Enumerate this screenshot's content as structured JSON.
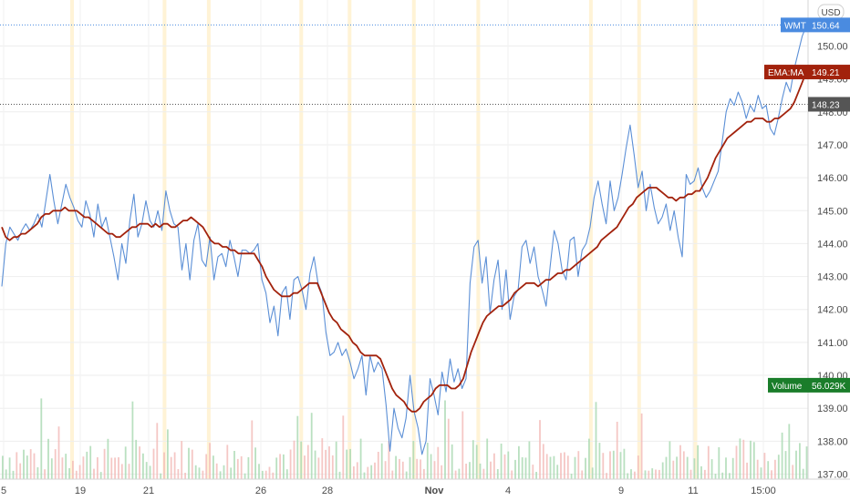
{
  "chart_data": {
    "type": "line",
    "currency_label": "USD",
    "x_axis_labels": [
      "5",
      "19",
      "21",
      "26",
      "28",
      "Nov",
      "4",
      "9",
      "11",
      "15:00"
    ],
    "y_ticks": [
      137,
      138,
      139,
      140,
      141,
      142,
      143,
      144,
      145,
      146,
      147,
      148,
      149,
      150
    ],
    "ylim": [
      136.8,
      150.9
    ],
    "grid": true,
    "series": [
      {
        "name": "WMT",
        "color": "#5b8fd6",
        "last_value": "150.64",
        "values": [
          142.7,
          144.0,
          144.5,
          144.3,
          144.1,
          144.4,
          144.6,
          144.4,
          144.6,
          144.9,
          144.5,
          145.3,
          146.1,
          145.3,
          144.6,
          145.2,
          145.8,
          145.4,
          145.1,
          144.7,
          144.5,
          145.3,
          144.9,
          144.2,
          145.2,
          144.5,
          144.8,
          144.2,
          143.6,
          142.9,
          144.0,
          143.4,
          144.7,
          145.5,
          144.2,
          144.6,
          145.3,
          144.7,
          144.5,
          145.0,
          144.4,
          145.6,
          145.0,
          144.6,
          144.5,
          143.2,
          144.0,
          142.9,
          144.1,
          144.6,
          143.5,
          143.3,
          144.2,
          142.9,
          143.6,
          143.7,
          143.3,
          144.1,
          143.6,
          143.0,
          143.8,
          143.8,
          143.7,
          143.8,
          144.0,
          142.9,
          142.5,
          141.6,
          142.1,
          141.2,
          142.5,
          142.7,
          141.7,
          142.9,
          143.0,
          142.6,
          142.0,
          143.1,
          143.6,
          142.8,
          142.5,
          141.3,
          140.6,
          140.7,
          141.0,
          140.6,
          140.8,
          140.4,
          139.9,
          140.2,
          140.6,
          139.4,
          140.6,
          140.1,
          140.4,
          140.2,
          139.1,
          137.7,
          139.0,
          138.4,
          138.1,
          138.7,
          140.0,
          138.9,
          138.4,
          137.6,
          138.0,
          139.9,
          139.4,
          138.8,
          140.1,
          139.5,
          140.5,
          139.8,
          140.2,
          139.6,
          139.9,
          142.8,
          143.9,
          144.1,
          142.8,
          143.6,
          141.9,
          142.9,
          143.5,
          142.0,
          143.2,
          141.7,
          142.4,
          142.6,
          143.9,
          144.1,
          143.4,
          143.9,
          143.0,
          142.6,
          142.1,
          143.3,
          144.4,
          144.0,
          143.2,
          142.9,
          144.1,
          144.2,
          143.0,
          143.8,
          144.0,
          144.5,
          145.4,
          145.9,
          145.2,
          144.6,
          145.9,
          145.0,
          145.4,
          146.1,
          146.9,
          147.6,
          146.7,
          145.7,
          146.2,
          145.0,
          145.8,
          145.1,
          144.6,
          144.8,
          145.2,
          144.4,
          145.0,
          144.2,
          143.6,
          146.1,
          145.8,
          145.9,
          146.3,
          145.7,
          145.4,
          145.6,
          145.9,
          146.2,
          147.1,
          148.0,
          148.4,
          148.2,
          148.6,
          148.3,
          147.8,
          148.2,
          148.0,
          148.5,
          148.1,
          148.2,
          147.5,
          147.3,
          147.8,
          148.4,
          148.9,
          148.6,
          149.3,
          149.8,
          150.3,
          150.6
        ]
      },
      {
        "name": "EMA:MA",
        "color": "#a2220c",
        "last_value": "149.21",
        "values": [
          144.5,
          144.2,
          144.1,
          144.2,
          144.2,
          144.3,
          144.3,
          144.4,
          144.5,
          144.6,
          144.8,
          144.9,
          144.9,
          145.0,
          145.0,
          145.0,
          145.1,
          145.0,
          145.0,
          145.0,
          144.9,
          144.8,
          144.8,
          144.7,
          144.6,
          144.5,
          144.4,
          144.3,
          144.3,
          144.2,
          144.2,
          144.3,
          144.4,
          144.5,
          144.5,
          144.6,
          144.6,
          144.6,
          144.5,
          144.6,
          144.5,
          144.6,
          144.6,
          144.5,
          144.5,
          144.6,
          144.7,
          144.7,
          144.8,
          144.7,
          144.6,
          144.5,
          144.3,
          144.1,
          144.0,
          144.0,
          143.9,
          143.9,
          143.8,
          143.8,
          143.7,
          143.7,
          143.7,
          143.7,
          143.7,
          143.5,
          143.3,
          143.0,
          142.8,
          142.6,
          142.5,
          142.4,
          142.4,
          142.4,
          142.5,
          142.5,
          142.6,
          142.7,
          142.8,
          142.8,
          142.8,
          142.5,
          142.2,
          141.9,
          141.7,
          141.6,
          141.4,
          141.3,
          141.2,
          141.0,
          140.9,
          140.7,
          140.6,
          140.6,
          140.6,
          140.6,
          140.5,
          140.2,
          139.9,
          139.6,
          139.4,
          139.3,
          139.2,
          139.0,
          138.9,
          138.9,
          139.0,
          139.2,
          139.3,
          139.4,
          139.6,
          139.7,
          139.7,
          139.7,
          139.6,
          139.6,
          139.7,
          139.9,
          140.3,
          140.7,
          141.0,
          141.3,
          141.6,
          141.8,
          141.9,
          142.0,
          142.1,
          142.1,
          142.2,
          142.3,
          142.5,
          142.6,
          142.7,
          142.8,
          142.8,
          142.8,
          142.7,
          142.8,
          142.9,
          142.9,
          143.0,
          143.1,
          143.1,
          143.2,
          143.2,
          143.3,
          143.4,
          143.5,
          143.6,
          143.7,
          143.8,
          143.9,
          144.1,
          144.2,
          144.3,
          144.4,
          144.5,
          144.7,
          144.9,
          145.1,
          145.2,
          145.4,
          145.5,
          145.6,
          145.7,
          145.7,
          145.7,
          145.6,
          145.5,
          145.4,
          145.4,
          145.3,
          145.4,
          145.4,
          145.5,
          145.5,
          145.6,
          145.6,
          145.8,
          146.0,
          146.3,
          146.6,
          146.8,
          147.0,
          147.2,
          147.3,
          147.4,
          147.5,
          147.6,
          147.7,
          147.7,
          147.8,
          147.8,
          147.8,
          147.7,
          147.7,
          147.8,
          147.8,
          147.9,
          148.0,
          148.1,
          148.3,
          148.6,
          148.9,
          149.21
        ]
      }
    ],
    "volume": {
      "name": "Volume",
      "last_value": "56.029K",
      "color_up": "#a8d8b0",
      "color_down": "#f3b9b6"
    },
    "price_lines": [
      {
        "value": 150.64,
        "label": "150.64",
        "color": "#4a8be0"
      },
      {
        "value": 148.23,
        "label": "148.23",
        "color": "#555555"
      }
    ],
    "session_highlight_color": "#fff3d6"
  }
}
